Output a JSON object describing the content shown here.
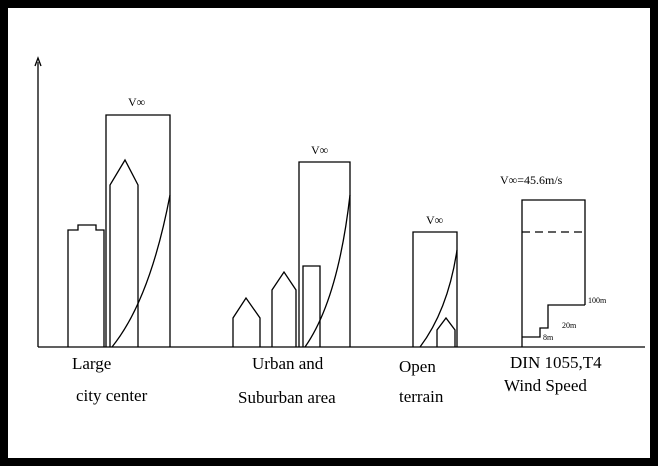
{
  "profiles": [
    {
      "label": "V∞",
      "caption": [
        "Large",
        "city center"
      ]
    },
    {
      "label": "V∞",
      "caption": [
        "Urban and",
        "Suburban area"
      ]
    },
    {
      "label": "V∞",
      "caption": [
        "Open",
        "terrain"
      ]
    },
    {
      "label": "V∞=45.6m/s",
      "caption": [
        "DIN 1055,T4",
        "Wind Speed"
      ],
      "heights": [
        "100m",
        "20m",
        "8m"
      ]
    }
  ]
}
